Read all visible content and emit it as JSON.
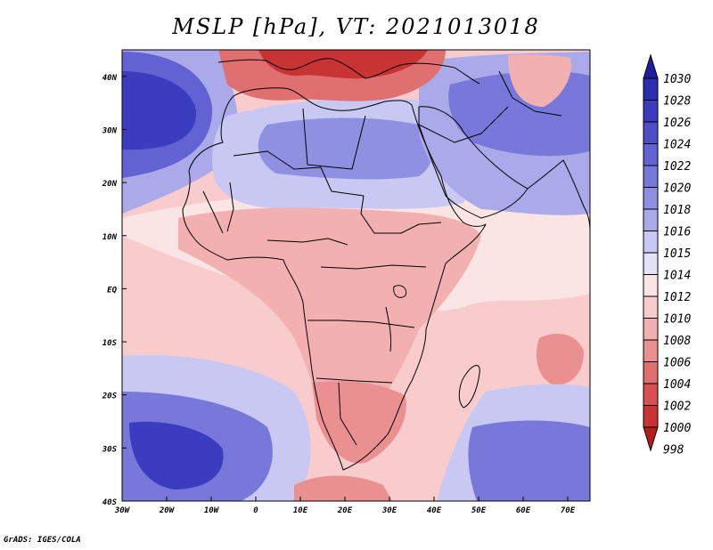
{
  "title": "MSLP [hPa], VT: 2021013018",
  "credit": "GrADS: IGES/COLA",
  "map": {
    "projection": "latlon",
    "lon_range": [
      -30,
      75
    ],
    "lat_range": [
      -40,
      45
    ],
    "lat_labels": [
      "40N",
      "30N",
      "20N",
      "10N",
      "EQ",
      "10S",
      "20S",
      "30S",
      "40S"
    ],
    "lon_labels": [
      "30W",
      "20W",
      "10W",
      "0",
      "10E",
      "20E",
      "30E",
      "40E",
      "50E",
      "60E",
      "70E"
    ]
  },
  "colorbar": {
    "levels": [
      "1030",
      "1028",
      "1026",
      "1024",
      "1022",
      "1020",
      "1018",
      "1016",
      "1015",
      "1014",
      "1012",
      "1010",
      "1008",
      "1006",
      "1004",
      "1002",
      "1000",
      "998"
    ],
    "colors": [
      "#1e1ea0",
      "#2d2daf",
      "#3c3cc0",
      "#4e4ec9",
      "#6262d2",
      "#7878da",
      "#9090e2",
      "#aaaaea",
      "#c8c8f2",
      "#e2e2f8",
      "#fbe4e4",
      "#f8cccc",
      "#f2b0b0",
      "#ea9090",
      "#e07070",
      "#d85050",
      "#c83434",
      "#b41e1e"
    ]
  },
  "field": {
    "background": "#f8cccc",
    "regions": [
      {
        "name": "bright-zone",
        "fill": "#fbe4e4"
      },
      {
        "name": "north-atlantic-high-outer",
        "fill": "#aaaaea"
      },
      {
        "name": "north-atlantic-high-mid",
        "fill": "#6262d2"
      },
      {
        "name": "north-atlantic-high-core",
        "fill": "#3c3cc0"
      },
      {
        "name": "sahara-high-outer",
        "fill": "#c8c8f2"
      },
      {
        "name": "sahara-high-inner",
        "fill": "#9090e2"
      },
      {
        "name": "eastern-high",
        "fill": "#aaaaea"
      },
      {
        "name": "eastern-high-core",
        "fill": "#7878da"
      },
      {
        "name": "mediterranean-low-outer",
        "fill": "#e07070"
      },
      {
        "name": "mediterranean-low-inner",
        "fill": "#c83434"
      },
      {
        "name": "arabia-low",
        "fill": "#f2b0b0"
      },
      {
        "name": "central-africa-low",
        "fill": "#f2b0b0"
      },
      {
        "name": "south-africa-low",
        "fill": "#ea9090"
      },
      {
        "name": "south-indian-low",
        "fill": "#ea9090"
      },
      {
        "name": "south-atlantic-high-outer",
        "fill": "#c8c8f2"
      },
      {
        "name": "south-atlantic-high-mid",
        "fill": "#7878da"
      },
      {
        "name": "south-atlantic-high-core",
        "fill": "#3c3cc0"
      },
      {
        "name": "south-indian-high-outer",
        "fill": "#c8c8f2"
      },
      {
        "name": "south-indian-high-core",
        "fill": "#7878da"
      },
      {
        "name": "southern-low-band",
        "fill": "#ea9090"
      }
    ]
  }
}
